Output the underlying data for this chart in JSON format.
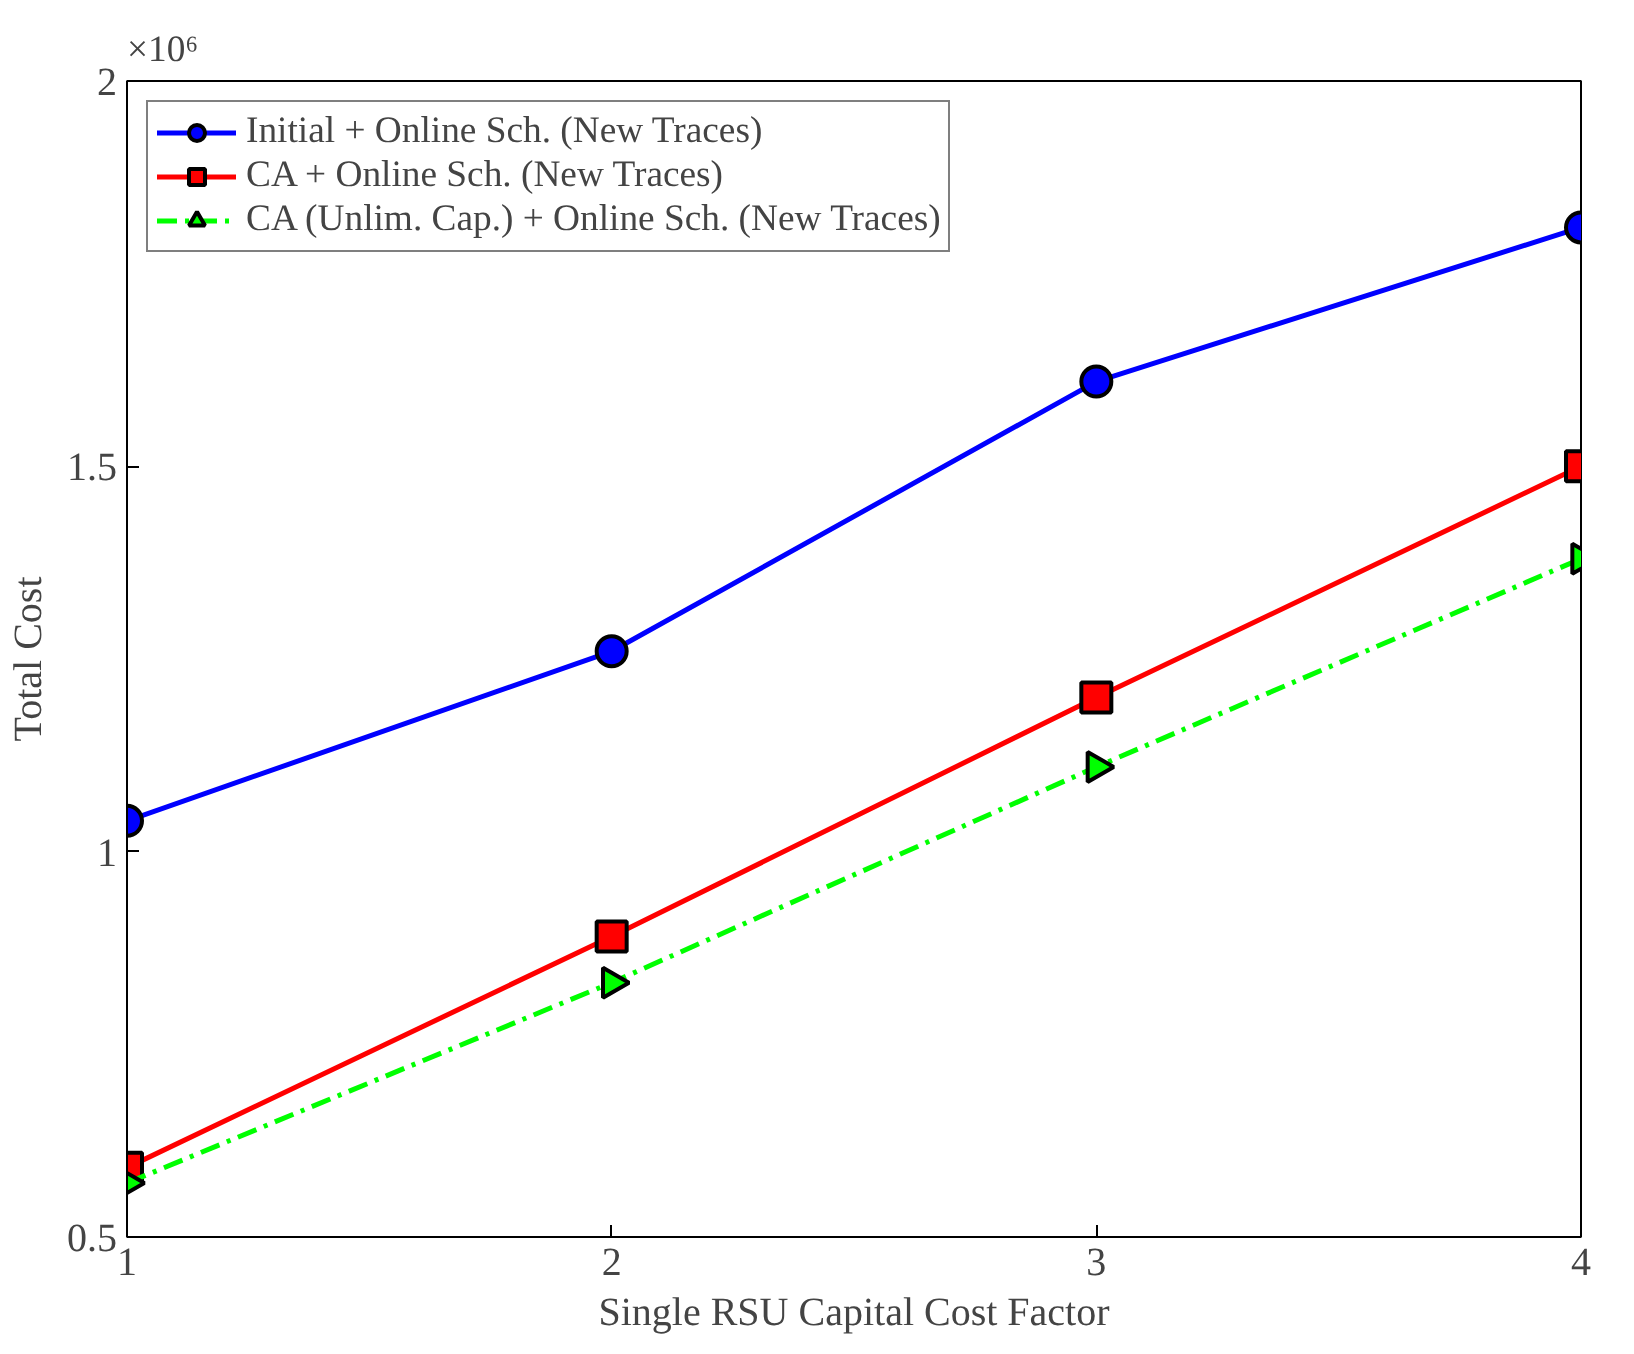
{
  "chart_data": {
    "type": "line",
    "xlabel": "Single RSU Capital Cost Factor",
    "ylabel": "Total Cost",
    "annotations": [
      "×10⁶"
    ],
    "x": [
      1,
      2,
      3,
      4
    ],
    "series": [
      {
        "name": "Initial + Online Sch. (New Traces)",
        "color": "#0000ff",
        "marker": "circle",
        "line_style": "solid",
        "values": [
          1.04,
          1.26,
          1.61,
          1.81
        ]
      },
      {
        "name": "CA + Online Sch. (New Traces)",
        "color": "#ff0000",
        "marker": "square",
        "line_style": "solid",
        "values": [
          0.59,
          0.89,
          1.2,
          1.5
        ]
      },
      {
        "name": "CA (Unlim. Cap.) + Online Sch. (New Traces)",
        "color": "#00ff00",
        "marker": "triangle",
        "line_style": "dashed",
        "values": [
          0.57,
          0.83,
          1.11,
          1.38
        ]
      }
    ],
    "xlim": [
      1,
      4
    ],
    "xticks": [
      1,
      2,
      3,
      4
    ],
    "ylim": [
      0.5,
      2
    ],
    "yticks": [
      0.5,
      1,
      1.5,
      2
    ],
    "grid": false,
    "legend": "top left"
  }
}
